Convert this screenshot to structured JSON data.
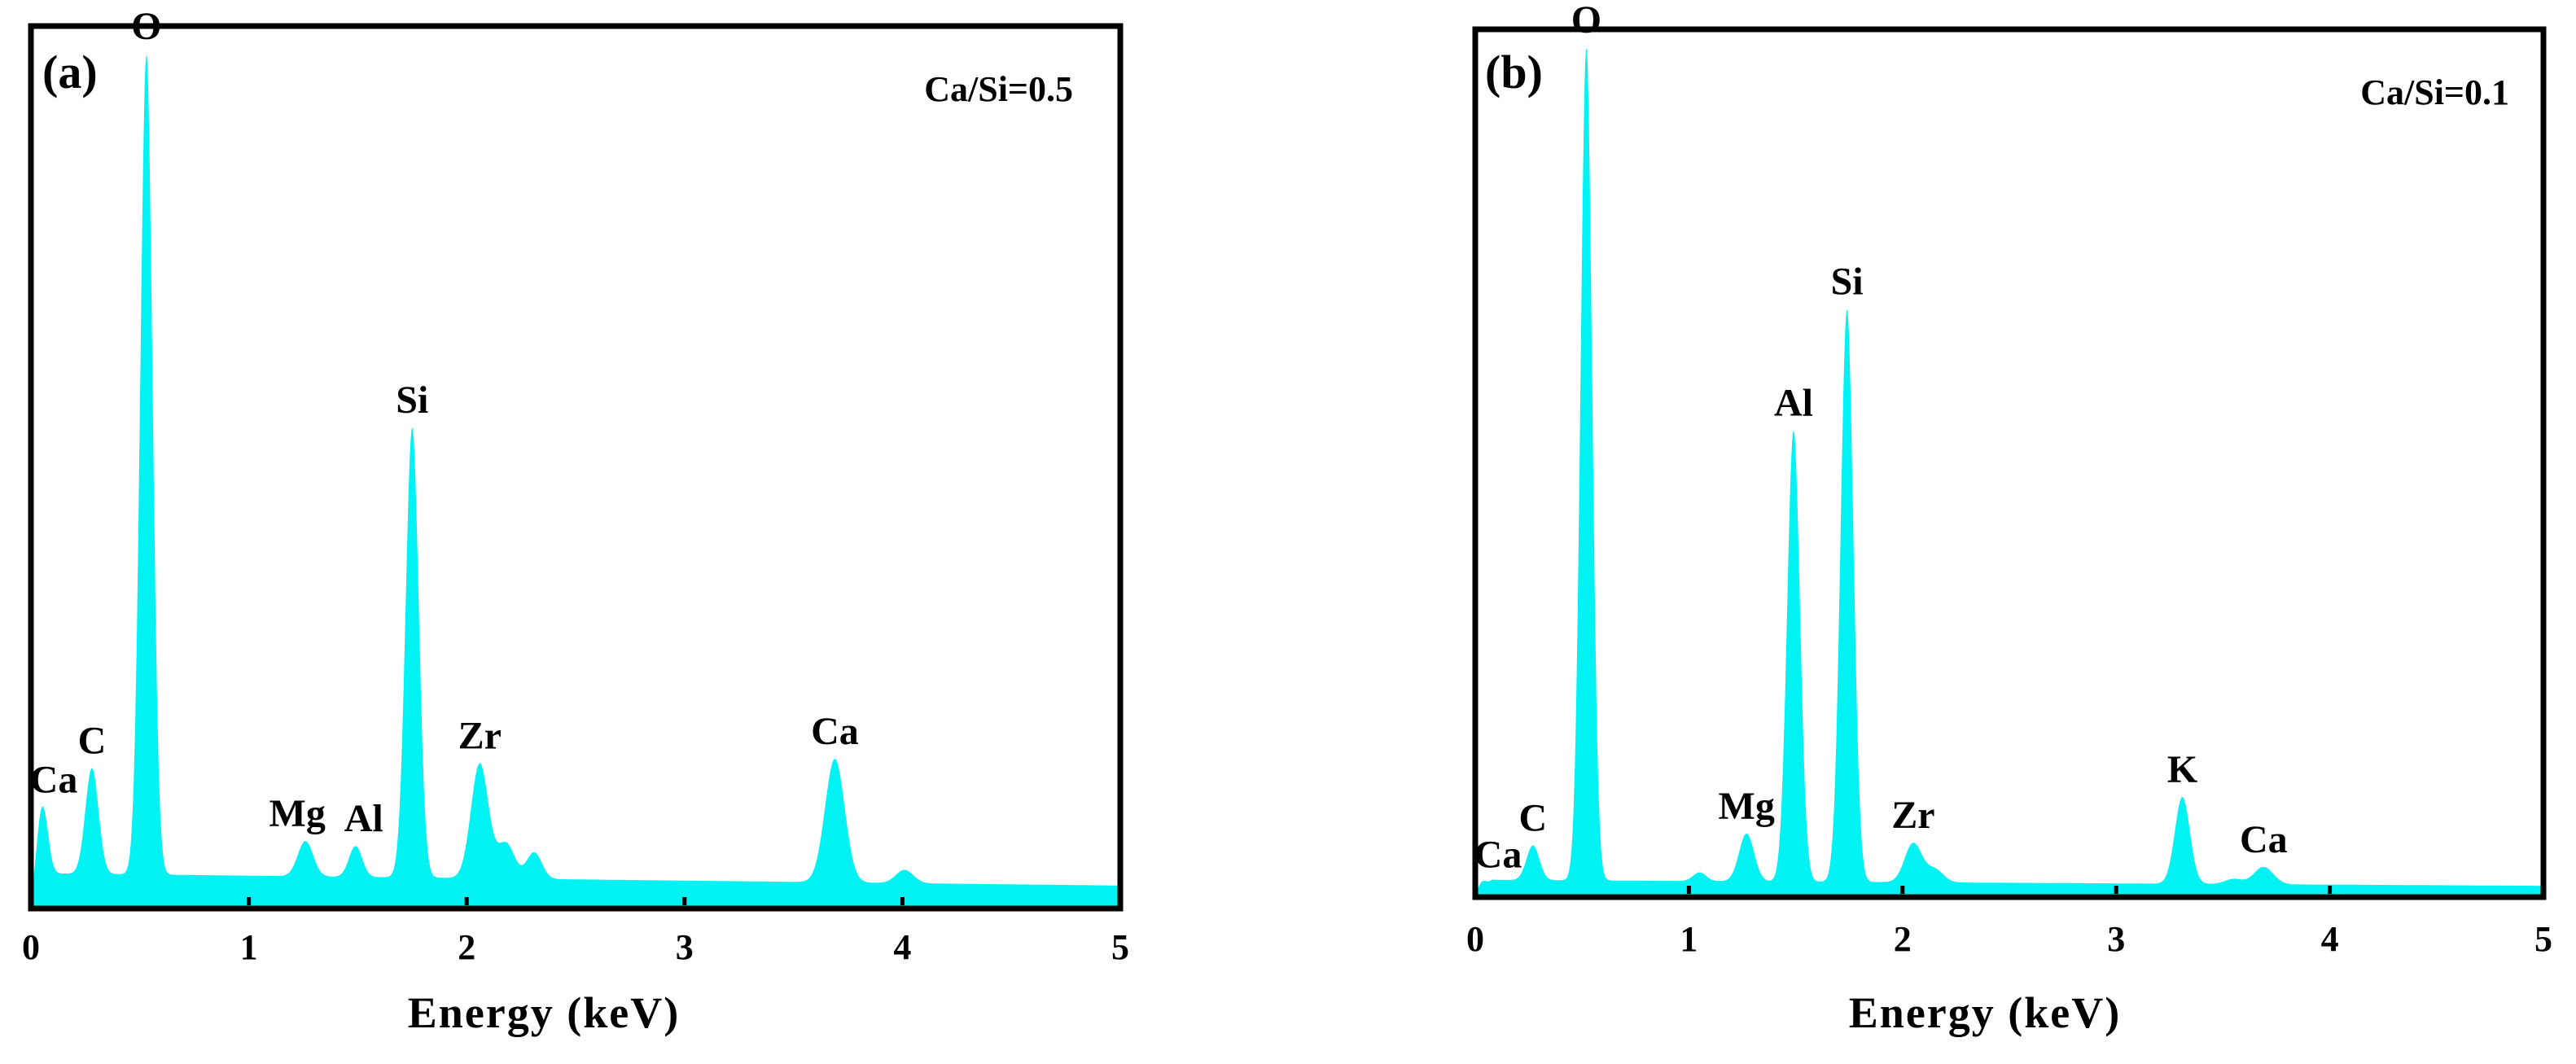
{
  "colors": {
    "spectrum": "#00f2f2",
    "frame": "#000000"
  },
  "chart_data": [
    {
      "type": "area",
      "panel_label": "(a)",
      "annotation": "Ca/Si=0.5",
      "xlabel": "Energy (keV)",
      "ylabel": "",
      "xlim": [
        0,
        5
      ],
      "xticks": [
        "0",
        "1",
        "2",
        "3",
        "4",
        "5"
      ],
      "background_level": 0.04,
      "peaks": [
        {
          "label": "Ca",
          "x": 0.05,
          "height": 0.09,
          "width": 0.025
        },
        {
          "label": "C",
          "x": 0.28,
          "height": 0.12,
          "width": 0.03
        },
        {
          "label": "O",
          "x": 0.53,
          "height": 0.93,
          "width": 0.028
        },
        {
          "label": "Mg",
          "x": 1.26,
          "height": 0.04,
          "width": 0.035
        },
        {
          "label": "Al",
          "x": 1.49,
          "height": 0.035,
          "width": 0.03
        },
        {
          "label": "Si",
          "x": 1.75,
          "height": 0.51,
          "width": 0.03
        },
        {
          "label": "Zr",
          "x": 2.06,
          "height": 0.13,
          "width": 0.04
        },
        {
          "label": "",
          "x": 2.18,
          "height": 0.04,
          "width": 0.04
        },
        {
          "label": "",
          "x": 2.31,
          "height": 0.03,
          "width": 0.035
        },
        {
          "label": "Ca",
          "x": 3.69,
          "height": 0.14,
          "width": 0.045
        },
        {
          "label": "",
          "x": 4.01,
          "height": 0.015,
          "width": 0.04
        }
      ]
    },
    {
      "type": "area",
      "panel_label": "(b)",
      "annotation": "Ca/Si=0.1",
      "xlabel": "Energy (keV)",
      "ylabel": "",
      "xlim": [
        0,
        5
      ],
      "xticks": [
        "0",
        "1",
        "2",
        "3",
        "4",
        "5"
      ],
      "background_level": 0.02,
      "peaks": [
        {
          "label": "Ca",
          "x": 0.03,
          "height": 0.01,
          "width": 0.02
        },
        {
          "label": "C",
          "x": 0.27,
          "height": 0.04,
          "width": 0.03
        },
        {
          "label": "O",
          "x": 0.52,
          "height": 0.96,
          "width": 0.027
        },
        {
          "label": "",
          "x": 1.05,
          "height": 0.01,
          "width": 0.03
        },
        {
          "label": "Mg",
          "x": 1.27,
          "height": 0.055,
          "width": 0.035
        },
        {
          "label": "Al",
          "x": 1.49,
          "height": 0.52,
          "width": 0.03
        },
        {
          "label": "Si",
          "x": 1.74,
          "height": 0.66,
          "width": 0.03
        },
        {
          "label": "Zr",
          "x": 2.05,
          "height": 0.045,
          "width": 0.04
        },
        {
          "label": "",
          "x": 2.15,
          "height": 0.015,
          "width": 0.04
        },
        {
          "label": "K",
          "x": 3.31,
          "height": 0.1,
          "width": 0.035
        },
        {
          "label": "",
          "x": 3.55,
          "height": 0.006,
          "width": 0.04
        },
        {
          "label": "Ca",
          "x": 3.69,
          "height": 0.02,
          "width": 0.045
        }
      ]
    }
  ]
}
